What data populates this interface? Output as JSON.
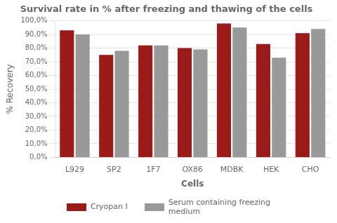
{
  "chart_data": {
    "type": "bar",
    "title": "Survival rate in % after freezing and thawing of the cells",
    "categories": [
      "L929",
      "SP2",
      "1F7",
      "OX86",
      "MDBK",
      "HEK",
      "CHO"
    ],
    "series": [
      {
        "name": "Cryopan I",
        "color": "#9B1A1A",
        "values": [
          93,
          75,
          82,
          80,
          98,
          83,
          91
        ]
      },
      {
        "name": "Serum containing freezing\nmedium",
        "color": "#999999",
        "values": [
          90,
          78,
          82,
          79,
          95,
          73,
          94
        ]
      }
    ],
    "ylabel": "% Recovery",
    "xlabel": "Cells",
    "ylim": [
      0,
      100
    ],
    "yticks": [
      {
        "value": 0,
        "label": "0,0%"
      },
      {
        "value": 10,
        "label": "10,0%"
      },
      {
        "value": 20,
        "label": "20,0%"
      },
      {
        "value": 30,
        "label": "30,0%"
      },
      {
        "value": 40,
        "label": "40,0%"
      },
      {
        "value": 50,
        "label": "50,0%"
      },
      {
        "value": 60,
        "label": "60,0%"
      },
      {
        "value": 70,
        "label": "70,0%"
      },
      {
        "value": 80,
        "label": "80,0%"
      },
      {
        "value": 90,
        "label": "90,0%"
      },
      {
        "value": 100,
        "label": "100,0%"
      }
    ],
    "grid": true,
    "legend": "bottom"
  }
}
